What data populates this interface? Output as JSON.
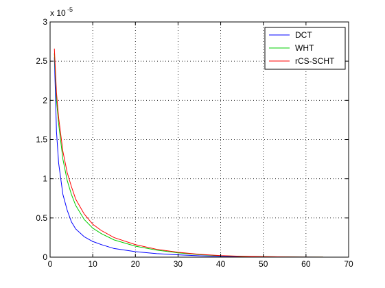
{
  "chart_data": {
    "type": "line",
    "title": "",
    "xlabel": "",
    "ylabel": "",
    "xlim": [
      0,
      70
    ],
    "ylim": [
      0,
      3
    ],
    "y_multiplier": {
      "base": "x 10",
      "exponent": "-5"
    },
    "xticks": [
      0,
      10,
      20,
      30,
      40,
      50,
      60,
      70
    ],
    "yticks": [
      0,
      0.5,
      1,
      1.5,
      2,
      2.5,
      3
    ],
    "xtick_labels": [
      "0",
      "10",
      "20",
      "30",
      "40",
      "50",
      "60",
      "70"
    ],
    "ytick_labels": [
      "0",
      "0.5",
      "1",
      "1.5",
      "2",
      "2.5",
      "3"
    ],
    "grid": true,
    "legend_position": "top-right",
    "series": [
      {
        "name": "DCT",
        "color": "#0000ff",
        "x": [
          1,
          1.5,
          2,
          3,
          4,
          5,
          6,
          8,
          10,
          12,
          15,
          20,
          25,
          30,
          35,
          40,
          45,
          50,
          55,
          60,
          64
        ],
        "y": [
          2.55,
          1.6,
          1.2,
          0.8,
          0.6,
          0.45,
          0.36,
          0.26,
          0.2,
          0.16,
          0.11,
          0.07,
          0.045,
          0.03,
          0.018,
          0.01,
          0.006,
          0.004,
          0.002,
          0.001,
          0.0005
        ]
      },
      {
        "name": "WHT",
        "color": "#00cc00",
        "x": [
          1,
          1.5,
          2,
          3,
          4,
          5,
          6,
          8,
          10,
          12,
          15,
          20,
          25,
          30,
          35,
          40,
          45,
          50,
          55,
          60,
          64
        ],
        "y": [
          2.6,
          2.0,
          1.7,
          1.25,
          0.98,
          0.8,
          0.66,
          0.48,
          0.37,
          0.3,
          0.22,
          0.14,
          0.09,
          0.055,
          0.032,
          0.018,
          0.01,
          0.006,
          0.003,
          0.0015,
          0.0008
        ]
      },
      {
        "name": "rCS-SCHT",
        "color": "#ff0000",
        "x": [
          1,
          1.5,
          2,
          3,
          4,
          5,
          6,
          8,
          10,
          12,
          15,
          20,
          25,
          30,
          35,
          40,
          45,
          50,
          55,
          60,
          64
        ],
        "y": [
          2.66,
          2.1,
          1.78,
          1.35,
          1.08,
          0.9,
          0.74,
          0.55,
          0.42,
          0.34,
          0.25,
          0.16,
          0.1,
          0.062,
          0.036,
          0.02,
          0.011,
          0.006,
          0.003,
          0.0015,
          0.0008
        ]
      }
    ]
  }
}
